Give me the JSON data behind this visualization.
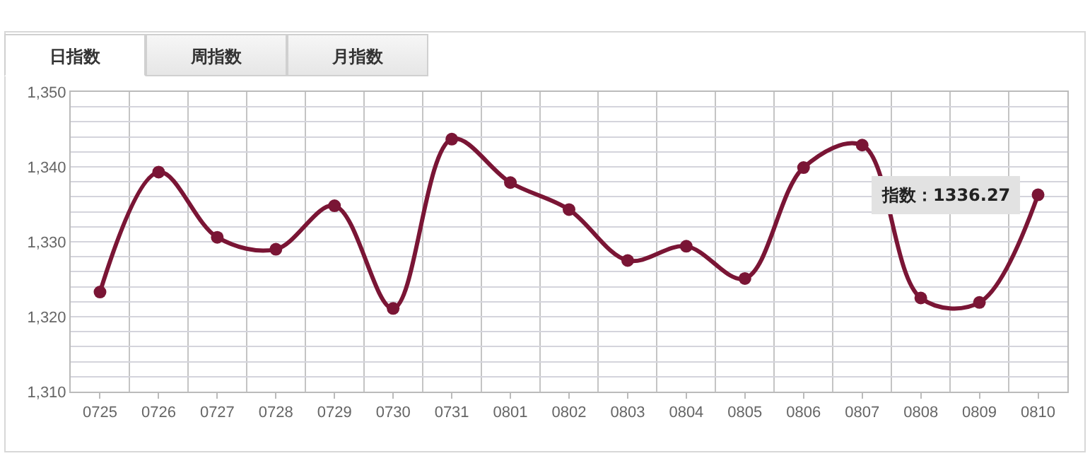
{
  "chart_data": {
    "type": "line",
    "categories": [
      "0725",
      "0726",
      "0727",
      "0728",
      "0729",
      "0730",
      "0731",
      "0801",
      "0802",
      "0803",
      "0804",
      "0805",
      "0806",
      "0807",
      "0808",
      "0809",
      "0810"
    ],
    "series": [
      {
        "color": "#7a1535",
        "values": [
          1323.3,
          1339.3,
          1330.6,
          1329.0,
          1334.8,
          1321.1,
          1343.7,
          1337.9,
          1334.3,
          1327.5,
          1329.4,
          1325.1,
          1339.9,
          1342.9,
          1322.5,
          1321.9,
          1336.27
        ]
      }
    ],
    "ylim": [
      1310,
      1350
    ],
    "yticks": [
      {
        "value": 1310,
        "label": "1,310"
      },
      {
        "value": 1312,
        "label": null
      },
      {
        "value": 1314,
        "label": null
      },
      {
        "value": 1316,
        "label": null
      },
      {
        "value": 1318,
        "label": null
      },
      {
        "value": 1320,
        "label": "1,320"
      },
      {
        "value": 1322,
        "label": null
      },
      {
        "value": 1324,
        "label": null
      },
      {
        "value": 1326,
        "label": null
      },
      {
        "value": 1328,
        "label": null
      },
      {
        "value": 1330,
        "label": "1,330"
      },
      {
        "value": 1332,
        "label": null
      },
      {
        "value": 1334,
        "label": null
      },
      {
        "value": 1336,
        "label": null
      },
      {
        "value": 1338,
        "label": null
      },
      {
        "value": 1340,
        "label": "1,340"
      },
      {
        "value": 1342,
        "label": null
      },
      {
        "value": 1344,
        "label": null
      },
      {
        "value": 1346,
        "label": null
      },
      {
        "value": 1348,
        "label": null
      },
      {
        "value": 1350,
        "label": "1,350"
      }
    ],
    "grid": true,
    "legend": false,
    "marker": "circle",
    "line_style": "solid",
    "annotations": [
      "日指数",
      "周指数",
      "月指数",
      {
        "text": "指数：1336.27",
        "x": "0810",
        "y": 1336.27
      }
    ]
  }
}
